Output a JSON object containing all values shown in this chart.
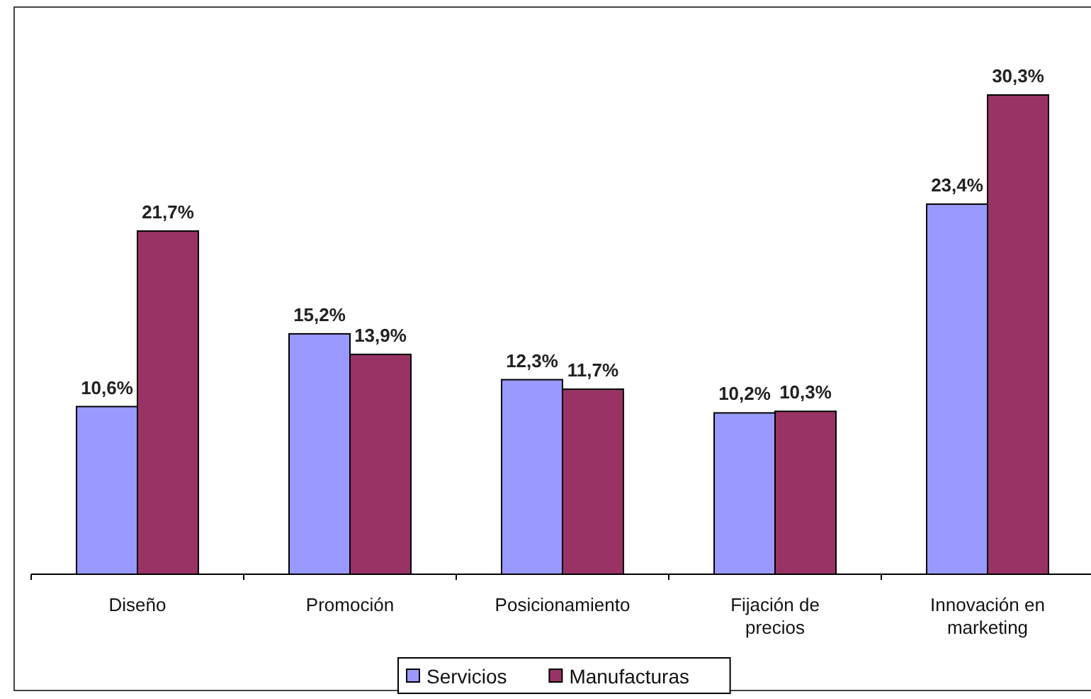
{
  "chart_data": {
    "type": "bar",
    "categories": [
      "Diseño",
      "Promoción",
      "Posicionamiento",
      "Fijación de precios",
      "Innovación en marketing"
    ],
    "series": [
      {
        "name": "Servicios",
        "color": "#9999ff",
        "values": [
          10.6,
          15.2,
          12.3,
          10.2,
          23.4
        ],
        "value_labels": [
          "10,6%",
          "15,2%",
          "12,3%",
          "10,2%",
          "23,4%"
        ]
      },
      {
        "name": "Manufacturas",
        "color": "#993366",
        "values": [
          21.7,
          13.9,
          11.7,
          10.3,
          30.3
        ],
        "value_labels": [
          "21,7%",
          "13,9%",
          "11,7%",
          "10,3%",
          "30,3%"
        ]
      }
    ],
    "legend": "bottom"
  }
}
